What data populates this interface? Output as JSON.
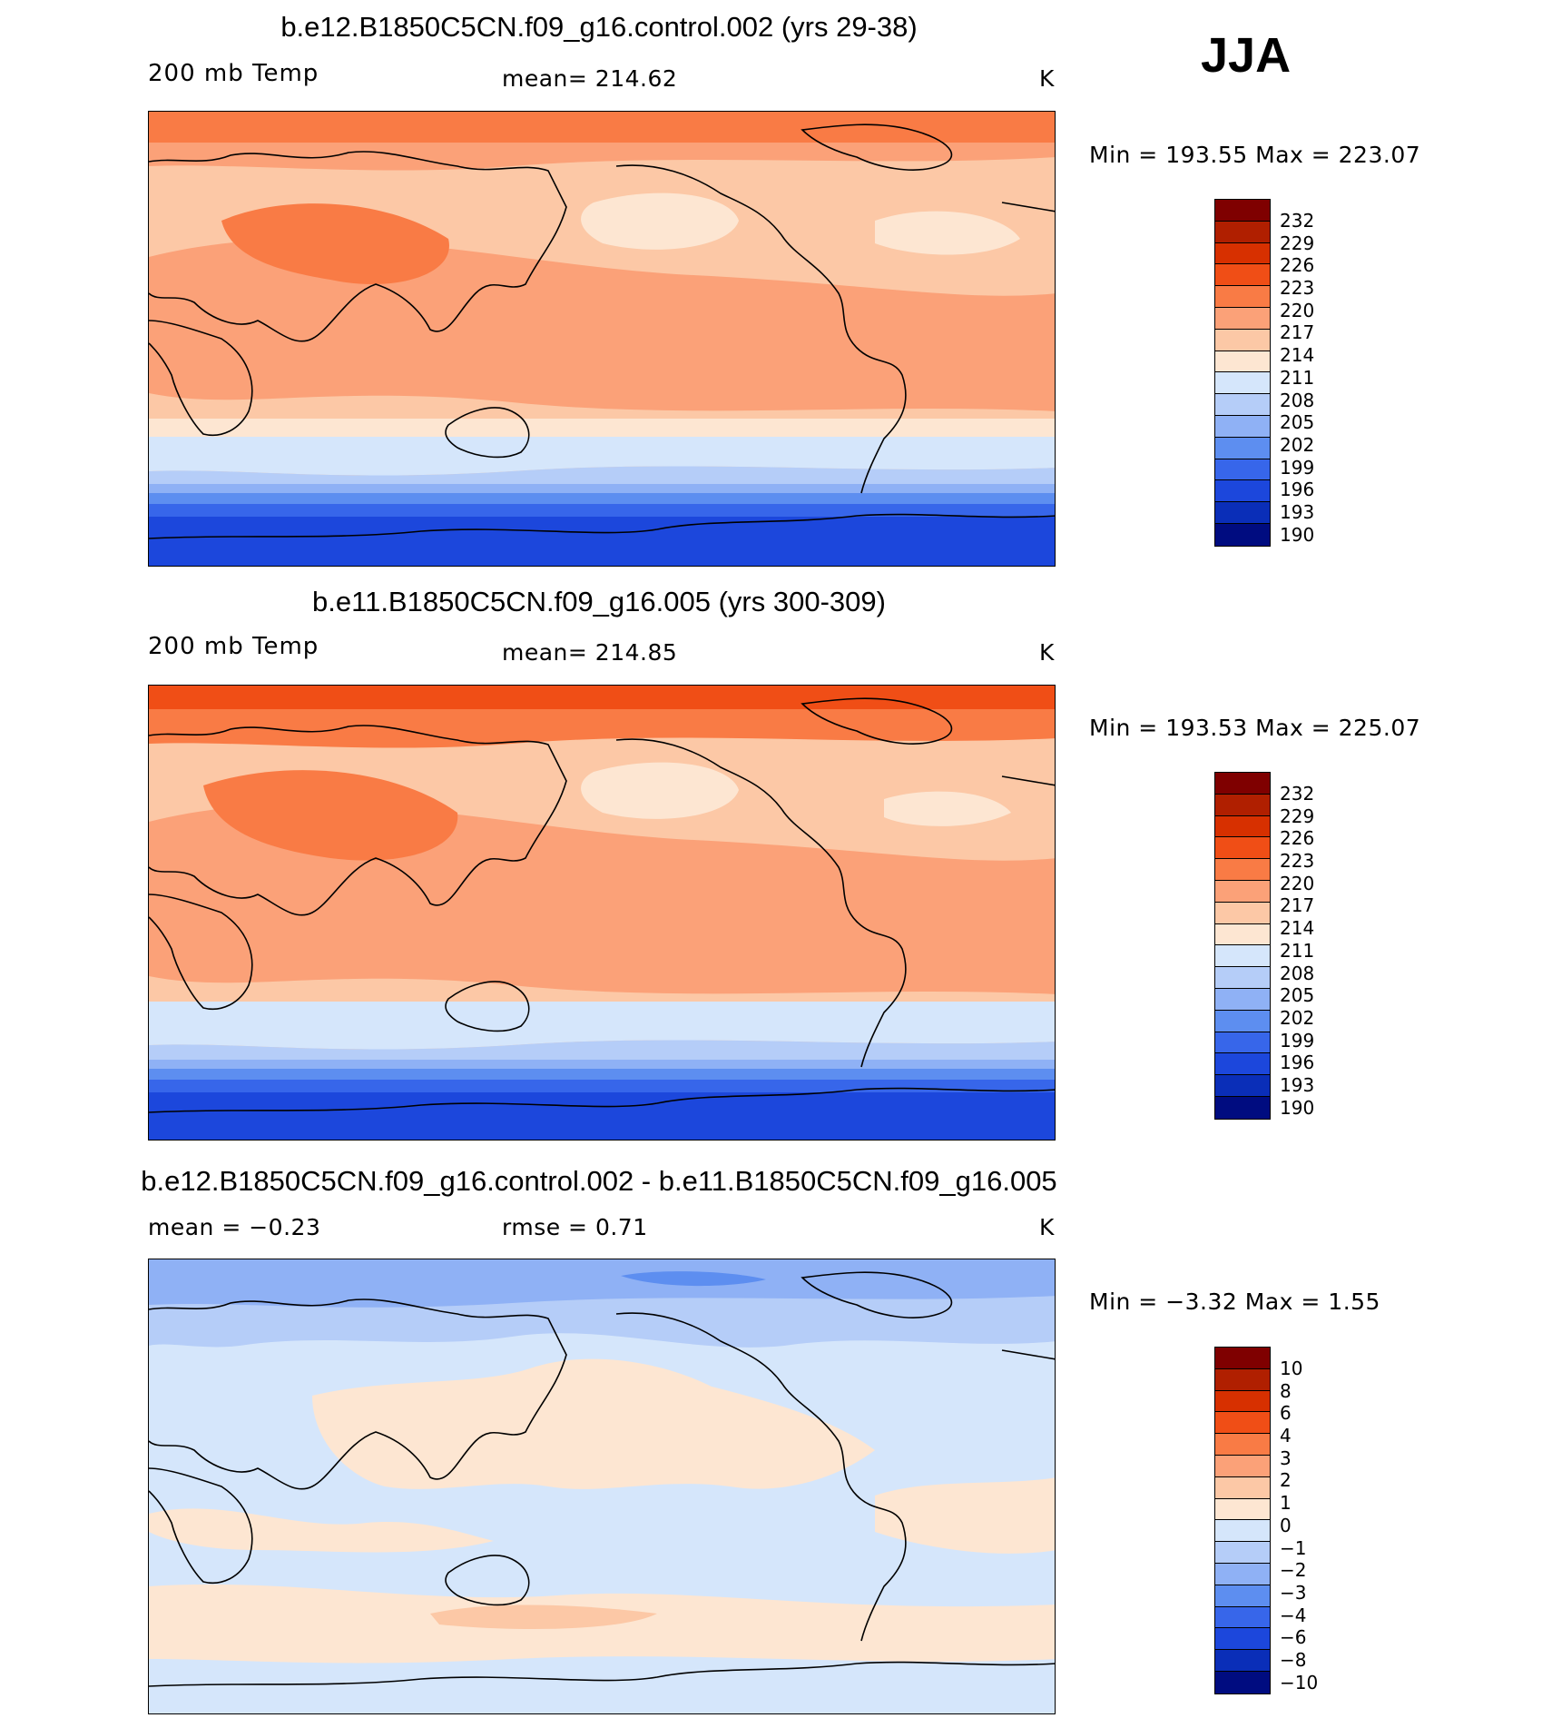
{
  "season": "JJA",
  "panels": [
    {
      "title": "b.e12.B1850C5CN.f09_g16.control.002 (yrs 29-38)",
      "variable": "200 mb Temp",
      "stat_left": "",
      "stat_center": "mean=  214.62",
      "units": "K",
      "minmax": "Min  =  193.55  Max  =  223.07",
      "colorbar_labels": [
        "232",
        "229",
        "226",
        "223",
        "220",
        "217",
        "214",
        "211",
        "208",
        "205",
        "202",
        "199",
        "196",
        "193",
        "190"
      ]
    },
    {
      "title": "b.e11.B1850C5CN.f09_g16.005 (yrs 300-309)",
      "variable": "200 mb Temp",
      "stat_left": "",
      "stat_center": "mean=  214.85",
      "units": "K",
      "minmax": "Min  =  193.53  Max  =  225.07",
      "colorbar_labels": [
        "232",
        "229",
        "226",
        "223",
        "220",
        "217",
        "214",
        "211",
        "208",
        "205",
        "202",
        "199",
        "196",
        "193",
        "190"
      ]
    },
    {
      "title": "b.e12.B1850C5CN.f09_g16.control.002 - b.e11.B1850C5CN.f09_g16.005",
      "variable": "",
      "stat_left": "mean  =    −0.23",
      "stat_center": "rmse  =     0.71",
      "units": "K",
      "minmax": "Min  =    −3.32  Max  =      1.55",
      "colorbar_labels": [
        "10",
        "8",
        "6",
        "4",
        "3",
        "2",
        "1",
        "0",
        "−1",
        "−2",
        "−3",
        "−4",
        "−6",
        "−8",
        "−10"
      ]
    }
  ],
  "colors": {
    "colorbar": [
      "#7f0000",
      "#b01f00",
      "#d73000",
      "#f04e16",
      "#f97b45",
      "#fba178",
      "#fcc8a6",
      "#fde6d2",
      "#d5e6fb",
      "#b5cdf8",
      "#8fb1f5",
      "#5d8ef0",
      "#3766ea",
      "#1c47dc",
      "#0a2eb8",
      "#000c80"
    ]
  }
}
